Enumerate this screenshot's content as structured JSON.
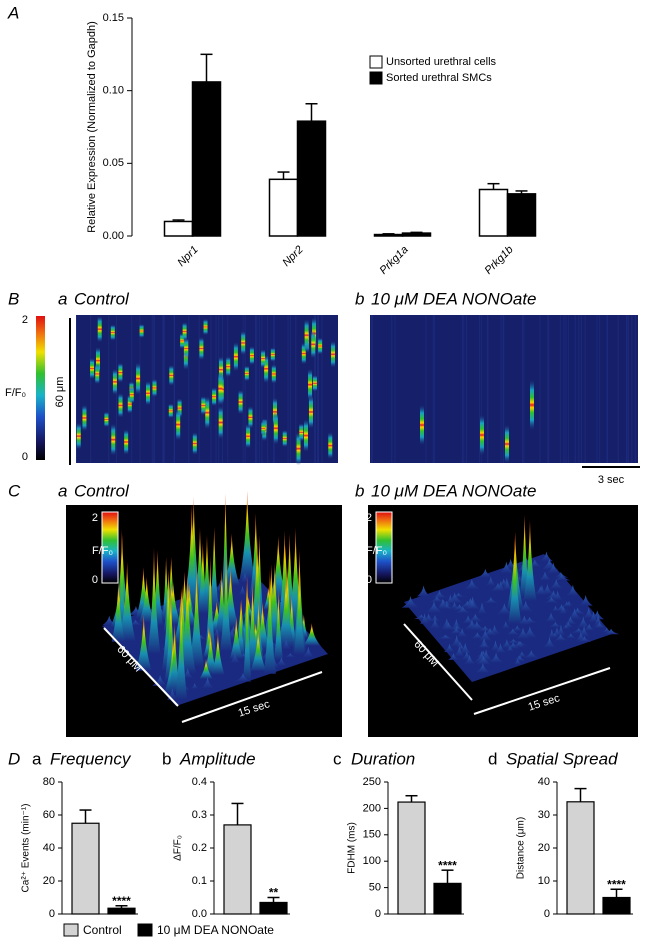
{
  "chart_data": [
    {
      "type": "bar",
      "panel": "A",
      "ylabel": "Relative Expression (Normalized to Gapdh)",
      "categories": [
        "Npr1",
        "Npr2",
        "Prkg1a",
        "Prkg1b"
      ],
      "series": [
        {
          "name": "Unsorted urethral cells",
          "color": "#ffffff",
          "values": [
            0.01,
            0.039,
            0.001,
            0.032
          ],
          "errors": [
            0.001,
            0.005,
            0.0005,
            0.004
          ]
        },
        {
          "name": "Sorted urethral SMCs",
          "color": "#000000",
          "values": [
            0.106,
            0.079,
            0.002,
            0.029
          ],
          "errors": [
            0.019,
            0.012,
            0.0005,
            0.002
          ]
        }
      ],
      "ylim": [
        0,
        0.15
      ],
      "yticks": [
        {
          "value": 0,
          "label": "0.00"
        },
        {
          "value": 0.05,
          "label": "0.05"
        },
        {
          "value": 0.1,
          "label": "0.10"
        },
        {
          "value": 0.15,
          "label": "0.15"
        }
      ]
    },
    {
      "type": "bar",
      "panel": "D",
      "letter": "a",
      "title": "Frequency",
      "ylabel": "Ca²⁺ Events (min⁻¹)",
      "values": [
        55,
        3.5
      ],
      "errors": [
        8,
        1.5
      ],
      "annotation": "****",
      "ylim": [
        0,
        80
      ],
      "yticks": [
        0,
        20,
        40,
        60,
        80
      ]
    },
    {
      "type": "bar",
      "letter": "b",
      "title": "Amplitude",
      "ylabel": "ΔF/F₀",
      "values": [
        0.27,
        0.035
      ],
      "errors": [
        0.065,
        0.015
      ],
      "annotation": "**",
      "ylim": [
        0,
        0.4
      ],
      "yticks": [
        {
          "value": 0,
          "label": "0.0"
        },
        0.1,
        0.2,
        0.3,
        0.4
      ]
    },
    {
      "type": "bar",
      "letter": "c",
      "title": "Duration",
      "ylabel": "FDHM (ms)",
      "values": [
        212,
        58
      ],
      "errors": [
        12,
        25
      ],
      "annotation": "****",
      "ylim": [
        0,
        250
      ],
      "yticks": [
        0,
        50,
        100,
        150,
        200,
        250
      ]
    },
    {
      "type": "bar",
      "letter": "d",
      "title": "Spatial Spread",
      "ylabel": "Distance (μm)",
      "values": [
        34,
        5
      ],
      "errors": [
        4,
        2.5
      ],
      "annotation": "****",
      "ylim": [
        0,
        40
      ],
      "yticks": [
        0,
        10,
        20,
        30,
        40
      ]
    }
  ],
  "legend": [
    {
      "name": "Control",
      "color": "#d3d3d3"
    },
    {
      "name": "10 μM DEA NONOate",
      "color": "#000000"
    }
  ],
  "imaging": {
    "B": {
      "label": "B",
      "panels": [
        {
          "letter": "a",
          "title": "Control"
        },
        {
          "letter": "b",
          "title": "10 μM DEA NONOate"
        }
      ],
      "colorbar": {
        "label": "F/F₀",
        "max": 2,
        "min": 0
      },
      "space_bar": "60 μm",
      "time_bar": "3 sec"
    },
    "C": {
      "label": "C",
      "panels": [
        {
          "letter": "a",
          "title": "Control"
        },
        {
          "letter": "b",
          "title": "10 μM DEA NONOate"
        }
      ],
      "colorbar": {
        "label": "F/F₀",
        "max": 2,
        "min": 0
      },
      "space_bar": "60 μM",
      "time_bar": "15 sec"
    }
  }
}
